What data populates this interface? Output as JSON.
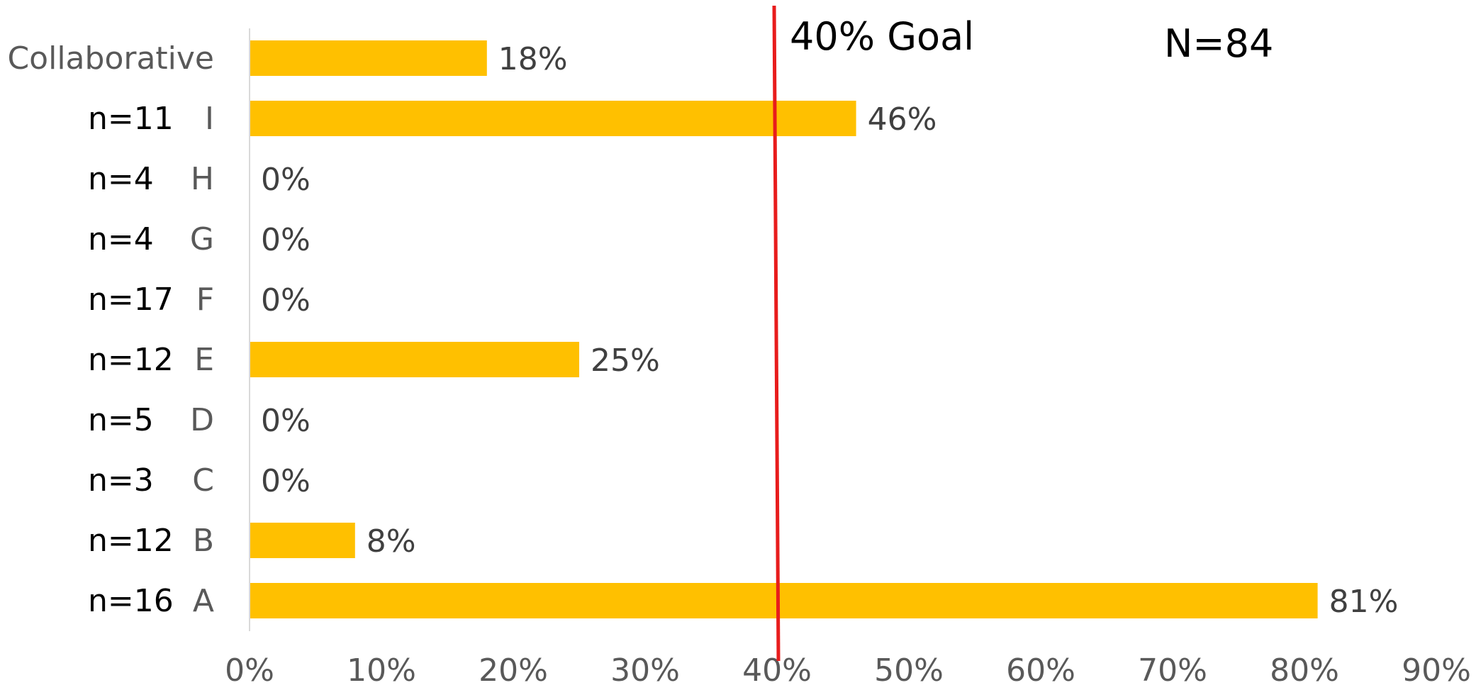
{
  "chart_data": {
    "type": "bar",
    "orientation": "horizontal",
    "categories": [
      "Collaborative",
      "I",
      "H",
      "G",
      "F",
      "E",
      "D",
      "C",
      "B",
      "A"
    ],
    "sample_sizes": [
      "",
      "n=11",
      "n=4",
      "n=4",
      "n=17",
      "n=12",
      "n=5",
      "n=3",
      "n=12",
      "n=16"
    ],
    "values": [
      18,
      46,
      0,
      0,
      0,
      25,
      0,
      0,
      8,
      81
    ],
    "value_labels": [
      "18%",
      "46%",
      "0%",
      "0%",
      "0%",
      "25%",
      "0%",
      "0%",
      "8%",
      "81%"
    ],
    "xlim": [
      0,
      90
    ],
    "x_ticks": [
      0,
      10,
      20,
      30,
      40,
      50,
      60,
      70,
      80,
      90
    ],
    "x_tick_labels": [
      "0%",
      "10%",
      "20%",
      "30%",
      "40%",
      "50%",
      "60%",
      "70%",
      "80%",
      "90%"
    ],
    "grid": false,
    "bar_color": "#FFC000",
    "goal_line": {
      "value": 40,
      "label": "40% Goal",
      "color": "#E81C1C"
    },
    "total_label": "N=84"
  }
}
